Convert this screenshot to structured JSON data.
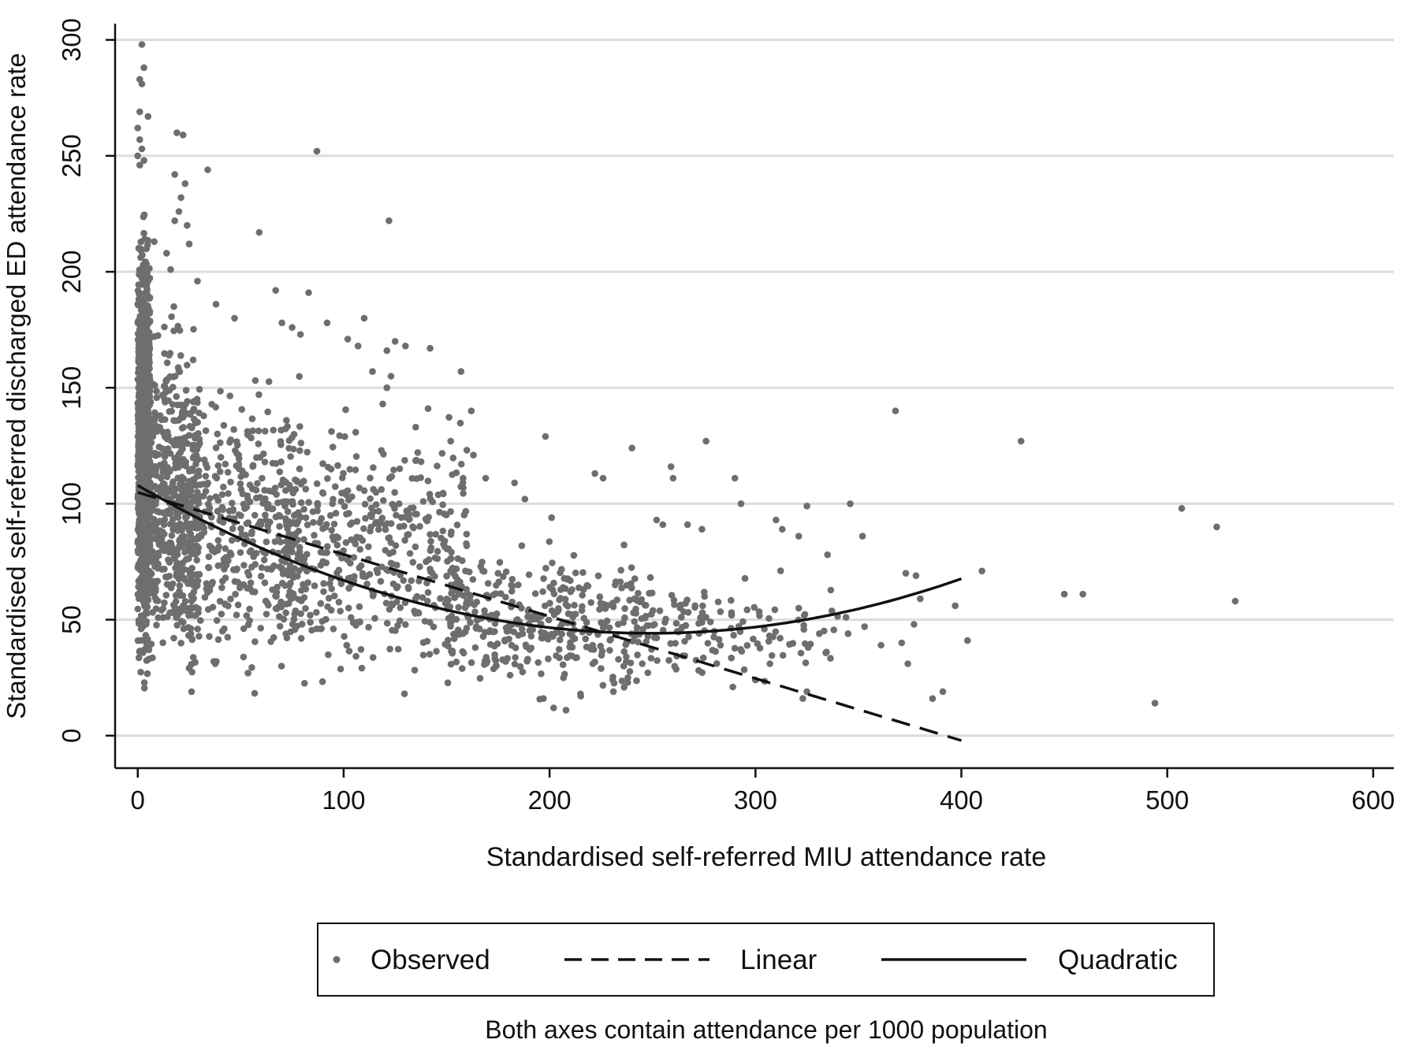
{
  "chart_data": {
    "type": "scatter",
    "xlabel": "Standardised self-referred MIU attendance rate",
    "ylabel": "Standardised self-referred discharged ED attendance rate",
    "note": "Both axes contain attendance per 1000 population",
    "xlim": [
      -11,
      610
    ],
    "ylim": [
      -14,
      307
    ],
    "x_ticks": [
      0,
      100,
      200,
      300,
      400,
      500,
      600
    ],
    "y_ticks": [
      0,
      50,
      100,
      150,
      200,
      250,
      300
    ],
    "grid": "horizontal",
    "legend_position": "bottom",
    "series": [
      {
        "name": "Observed",
        "kind": "points",
        "color": "#6e6e6e",
        "points": [
          [
            2,
            298
          ],
          [
            3,
            288
          ],
          [
            1,
            283
          ],
          [
            2,
            281
          ],
          [
            1,
            269
          ],
          [
            5,
            267
          ],
          [
            0,
            262
          ],
          [
            19,
            260
          ],
          [
            22,
            259
          ],
          [
            1,
            257
          ],
          [
            2,
            253
          ],
          [
            0,
            250
          ],
          [
            3,
            248
          ],
          [
            1,
            246
          ],
          [
            87,
            252
          ],
          [
            34,
            244
          ],
          [
            23,
            238
          ],
          [
            18,
            242
          ],
          [
            21,
            232
          ],
          [
            20,
            226
          ],
          [
            18,
            222
          ],
          [
            24,
            220
          ],
          [
            59,
            217
          ],
          [
            122,
            222
          ],
          [
            8,
            213
          ],
          [
            14,
            208
          ],
          [
            25,
            212
          ],
          [
            16,
            201
          ],
          [
            29,
            196
          ],
          [
            38,
            186
          ],
          [
            47,
            180
          ],
          [
            67,
            192
          ],
          [
            83,
            191
          ],
          [
            92,
            178
          ],
          [
            70,
            178
          ],
          [
            75,
            176
          ],
          [
            79,
            173
          ],
          [
            110,
            180
          ],
          [
            125,
            170
          ],
          [
            121,
            166
          ],
          [
            130,
            168
          ],
          [
            142,
            167
          ],
          [
            102,
            171
          ],
          [
            107,
            168
          ],
          [
            114,
            157
          ],
          [
            121,
            150
          ],
          [
            119,
            143
          ],
          [
            123,
            155
          ],
          [
            157,
            157
          ],
          [
            141,
            141
          ],
          [
            135,
            133
          ],
          [
            152,
            127
          ],
          [
            162,
            140
          ],
          [
            198,
            129
          ],
          [
            240,
            124
          ],
          [
            276,
            127
          ],
          [
            368,
            140
          ],
          [
            429,
            127
          ],
          [
            163,
            121
          ],
          [
            169,
            111
          ],
          [
            158,
            111
          ],
          [
            183,
            109
          ],
          [
            188,
            102
          ],
          [
            201,
            94
          ],
          [
            222,
            113
          ],
          [
            226,
            111
          ],
          [
            259,
            116
          ],
          [
            260,
            111
          ],
          [
            290,
            111
          ],
          [
            293,
            100
          ],
          [
            325,
            99
          ],
          [
            346,
            100
          ],
          [
            252,
            93
          ],
          [
            255,
            91
          ],
          [
            267,
            91
          ],
          [
            274,
            89
          ],
          [
            310,
            93
          ],
          [
            313,
            89
          ],
          [
            321,
            86
          ],
          [
            335,
            78
          ],
          [
            352,
            86
          ],
          [
            373,
            70
          ],
          [
            378,
            69
          ],
          [
            410,
            71
          ],
          [
            507,
            98
          ],
          [
            524,
            90
          ],
          [
            533,
            58
          ],
          [
            450,
            61
          ],
          [
            459,
            61
          ],
          [
            494,
            14
          ],
          [
            403,
            41
          ],
          [
            391,
            19
          ],
          [
            386,
            16
          ],
          [
            397,
            56
          ],
          [
            377,
            48
          ],
          [
            380,
            59
          ],
          [
            371,
            40
          ],
          [
            374,
            31
          ],
          [
            361,
            39
          ],
          [
            345,
            44
          ],
          [
            344,
            51
          ],
          [
            353,
            47
          ],
          [
            331,
            44
          ],
          [
            325,
            19
          ],
          [
            323,
            16
          ],
          [
            307,
            31
          ],
          [
            312,
            42
          ],
          [
            321,
            55
          ],
          [
            300,
            24
          ],
          [
            289,
            21
          ],
          [
            283,
            39
          ],
          [
            280,
            45
          ],
          [
            276,
            51
          ],
          [
            264,
            51
          ],
          [
            251,
            48
          ],
          [
            245,
            31
          ],
          [
            238,
            25
          ],
          [
            231,
            19
          ],
          [
            221,
            31
          ],
          [
            215,
            18
          ],
          [
            208,
            11
          ],
          [
            202,
            12
          ],
          [
            197,
            16
          ]
        ],
        "dense_clusters": [
          {
            "x_range": [
              0,
              6
            ],
            "y_range": [
              4,
              240
            ],
            "count": 900
          },
          {
            "x_range": [
              4,
              30
            ],
            "y_range": [
              6,
              200
            ],
            "count": 500
          },
          {
            "x_range": [
              20,
              80
            ],
            "y_range": [
              8,
              170
            ],
            "count": 450
          },
          {
            "x_range": [
              70,
              160
            ],
            "y_range": [
              8,
              150
            ],
            "count": 450
          },
          {
            "x_range": [
              150,
              250
            ],
            "y_range": [
              8,
              90
            ],
            "count": 350
          },
          {
            "x_range": [
              240,
              340
            ],
            "y_range": [
              15,
              75
            ],
            "count": 120
          }
        ]
      },
      {
        "name": "Linear",
        "kind": "line",
        "style": "dashed",
        "x_start": 0,
        "x_end": 400,
        "intercept": 104.9,
        "slope": -0.2675
      },
      {
        "name": "Quadratic",
        "kind": "line",
        "style": "solid",
        "x_start": 0,
        "x_end": 400,
        "coefficients": [
          107.9,
          -0.5126,
          0.00103
        ]
      }
    ]
  },
  "legend": {
    "observed_label": "Observed",
    "linear_label": "Linear",
    "quadratic_label": "Quadratic"
  }
}
